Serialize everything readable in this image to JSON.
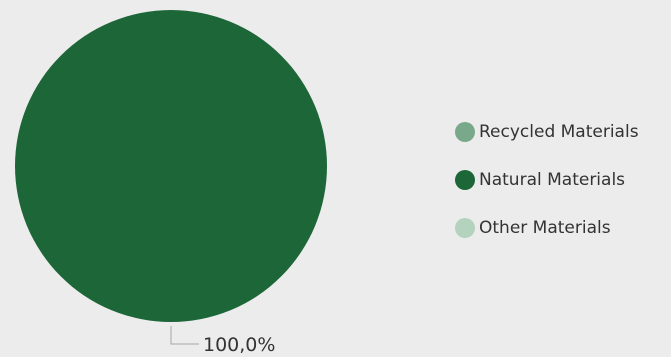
{
  "chart_data": {
    "type": "pie",
    "categories": [
      "Recycled Materials",
      "Natural Materials",
      "Other Materials"
    ],
    "values": [
      0,
      100,
      0
    ],
    "colors": [
      "#7aa88a",
      "#1c6638",
      "#b3d3be"
    ],
    "data_labels": [
      "",
      "100,0%",
      ""
    ],
    "legend": {
      "placement": "right",
      "entries": [
        "Recycled Materials",
        "Natural Materials",
        "Other Materials"
      ]
    }
  },
  "background_color": "#ececec",
  "text_color": "#333333",
  "leader_line_color": "#a6a6a6"
}
